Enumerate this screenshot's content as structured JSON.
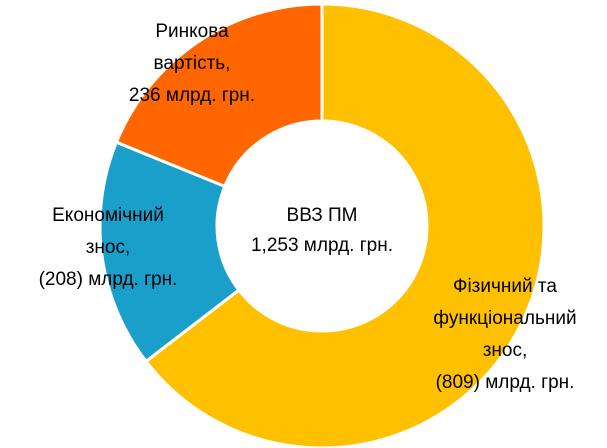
{
  "chart_data": {
    "type": "pie",
    "donut": true,
    "categories": [
      [
        "Фізичний та",
        "функціональний",
        "знос,"
      ],
      [
        "Економічний",
        "знос,"
      ],
      [
        "Ринкова",
        "вартість,"
      ]
    ],
    "values": [
      809,
      208,
      236
    ],
    "value_labels": [
      "(809) млрд. грн.",
      "(208) млрд. грн.",
      "236 млрд. грн."
    ],
    "colors": [
      "#FFC000",
      "#1A9FCB",
      "#FF6600"
    ],
    "center_title": "ВВЗ ПМ",
    "center_label": "1,253 млрд. грн."
  }
}
